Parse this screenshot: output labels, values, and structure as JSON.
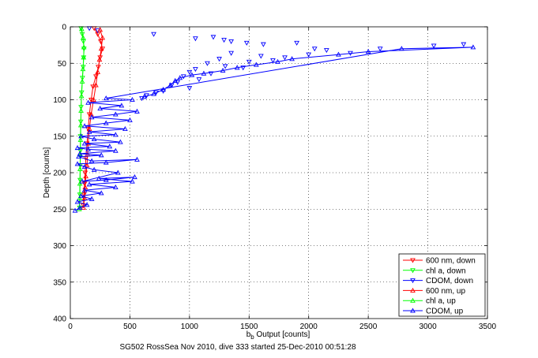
{
  "chart_data": {
    "type": "scatter",
    "xlabel_main": "b",
    "xlabel_sub": "b",
    "xlabel_rest": " Output [counts]",
    "ylabel": "Depth [counts]",
    "caption": "SG502 RossSea Nov 2010, dive 333 started 25-Dec-2010 00:51:28",
    "xlim": [
      0,
      3500
    ],
    "ylim": [
      0,
      400
    ],
    "y_reversed": true,
    "grid": true,
    "x_ticks": [
      0,
      500,
      1000,
      1500,
      2000,
      2500,
      3000,
      3500
    ],
    "x_tick_labels": [
      "0",
      "500",
      "1000",
      "1500",
      "2000",
      "2500",
      "3000",
      "3500"
    ],
    "y_ticks": [
      0,
      50,
      100,
      150,
      200,
      250,
      300,
      350,
      400
    ],
    "y_tick_labels": [
      "0",
      "50",
      "100",
      "150",
      "200",
      "250",
      "300",
      "350",
      "400"
    ],
    "legend_placement": "bottom-right",
    "series": [
      {
        "name": "600 nm, down",
        "color": "#ff0000",
        "marker": "triangle-down",
        "line": true,
        "points": [
          [
            200,
            2
          ],
          [
            230,
            10
          ],
          [
            255,
            20
          ],
          [
            270,
            30
          ],
          [
            250,
            42
          ],
          [
            235,
            55
          ],
          [
            215,
            68
          ],
          [
            190,
            82
          ],
          [
            175,
            100
          ],
          [
            160,
            120
          ],
          [
            150,
            140
          ],
          [
            140,
            160
          ],
          [
            130,
            180
          ],
          [
            125,
            200
          ],
          [
            120,
            215
          ],
          [
            115,
            230
          ],
          [
            110,
            245
          ]
        ]
      },
      {
        "name": "chl a, down",
        "color": "#00ff00",
        "marker": "triangle-down",
        "line": true,
        "points": [
          [
            90,
            2
          ],
          [
            100,
            10
          ],
          [
            110,
            20
          ],
          [
            115,
            30
          ],
          [
            112,
            42
          ],
          [
            108,
            55
          ],
          [
            102,
            70
          ],
          [
            95,
            90
          ],
          [
            90,
            110
          ],
          [
            88,
            130
          ],
          [
            85,
            150
          ],
          [
            84,
            170
          ],
          [
            83,
            190
          ],
          [
            82,
            210
          ],
          [
            80,
            230
          ],
          [
            78,
            248
          ]
        ]
      },
      {
        "name": "CDOM, down",
        "color": "#0000ff",
        "marker": "triangle-down",
        "line": false,
        "points": [
          [
            160,
            2
          ],
          [
            230,
            5
          ],
          [
            700,
            10
          ],
          [
            1050,
            16
          ],
          [
            1200,
            14
          ],
          [
            1290,
            18
          ],
          [
            1350,
            20
          ],
          [
            1480,
            22
          ],
          [
            1620,
            24
          ],
          [
            1900,
            22
          ],
          [
            2050,
            30
          ],
          [
            2150,
            32
          ],
          [
            2600,
            30
          ],
          [
            3050,
            26
          ],
          [
            3300,
            24
          ],
          [
            1350,
            36
          ],
          [
            1600,
            40
          ],
          [
            1800,
            42
          ],
          [
            2000,
            38
          ],
          [
            2350,
            36
          ],
          [
            1250,
            44
          ],
          [
            1500,
            48
          ],
          [
            1700,
            46
          ],
          [
            1150,
            50
          ],
          [
            1300,
            54
          ],
          [
            1450,
            56
          ],
          [
            1050,
            58
          ],
          [
            1000,
            62
          ],
          [
            1180,
            64
          ],
          [
            950,
            68
          ],
          [
            1080,
            72
          ],
          [
            900,
            76
          ],
          [
            850,
            80
          ],
          [
            1000,
            84
          ],
          [
            780,
            88
          ],
          [
            720,
            90
          ],
          [
            640,
            94
          ],
          [
            600,
            98
          ]
        ]
      },
      {
        "name": "600 nm, up",
        "color": "#ff0000",
        "marker": "triangle-up",
        "line": true,
        "points": [
          [
            110,
            248
          ],
          [
            120,
            235
          ],
          [
            125,
            220
          ],
          [
            130,
            205
          ],
          [
            140,
            190
          ],
          [
            145,
            175
          ],
          [
            150,
            160
          ],
          [
            160,
            140
          ],
          [
            175,
            120
          ],
          [
            195,
            100
          ],
          [
            215,
            80
          ],
          [
            230,
            62
          ],
          [
            245,
            45
          ],
          [
            260,
            30
          ],
          [
            270,
            15
          ],
          [
            250,
            4
          ]
        ]
      },
      {
        "name": "chl a, up",
        "color": "#00ff00",
        "marker": "triangle-up",
        "line": true,
        "points": [
          [
            75,
            250
          ],
          [
            78,
            235
          ],
          [
            80,
            215
          ],
          [
            82,
            195
          ],
          [
            84,
            175
          ],
          [
            86,
            155
          ],
          [
            88,
            135
          ],
          [
            90,
            115
          ],
          [
            94,
            95
          ],
          [
            100,
            75
          ],
          [
            106,
            58
          ],
          [
            112,
            42
          ],
          [
            114,
            28
          ],
          [
            108,
            15
          ],
          [
            95,
            3
          ]
        ]
      },
      {
        "name": "CDOM, up",
        "color": "#0000ff",
        "marker": "triangle-up",
        "line": true,
        "points": [
          [
            40,
            252
          ],
          [
            80,
            248
          ],
          [
            140,
            244
          ],
          [
            60,
            240
          ],
          [
            180,
            236
          ],
          [
            90,
            232
          ],
          [
            260,
            228
          ],
          [
            120,
            224
          ],
          [
            380,
            220
          ],
          [
            160,
            216
          ],
          [
            520,
            212
          ],
          [
            240,
            208
          ],
          [
            540,
            206
          ],
          [
            300,
            210
          ],
          [
            100,
            212
          ],
          [
            400,
            200
          ],
          [
            200,
            196
          ],
          [
            120,
            192
          ],
          [
            60,
            188
          ],
          [
            300,
            186
          ],
          [
            560,
            182
          ],
          [
            180,
            184
          ],
          [
            70,
            178
          ],
          [
            260,
            176
          ],
          [
            80,
            174
          ],
          [
            380,
            170
          ],
          [
            150,
            168
          ],
          [
            60,
            166
          ],
          [
            330,
            164
          ],
          [
            120,
            160
          ],
          [
            420,
            158
          ],
          [
            200,
            154
          ],
          [
            90,
            150
          ],
          [
            380,
            148
          ],
          [
            160,
            144
          ],
          [
            460,
            140
          ],
          [
            120,
            136
          ],
          [
            300,
            132
          ],
          [
            500,
            128
          ],
          [
            180,
            124
          ],
          [
            380,
            120
          ],
          [
            560,
            116
          ],
          [
            250,
            112
          ],
          [
            430,
            108
          ],
          [
            150,
            104
          ],
          [
            520,
            100
          ],
          [
            300,
            98
          ],
          [
            2780,
            30
          ],
          [
            3380,
            28
          ],
          [
            2500,
            34
          ],
          [
            2250,
            38
          ],
          [
            1860,
            44
          ],
          [
            1740,
            48
          ],
          [
            1560,
            52
          ],
          [
            1400,
            56
          ],
          [
            1280,
            60
          ],
          [
            1120,
            64
          ],
          [
            1020,
            66
          ],
          [
            920,
            70
          ],
          [
            880,
            74
          ],
          [
            840,
            80
          ],
          [
            780,
            86
          ],
          [
            700,
            92
          ],
          [
            620,
            96
          ]
        ]
      }
    ]
  }
}
